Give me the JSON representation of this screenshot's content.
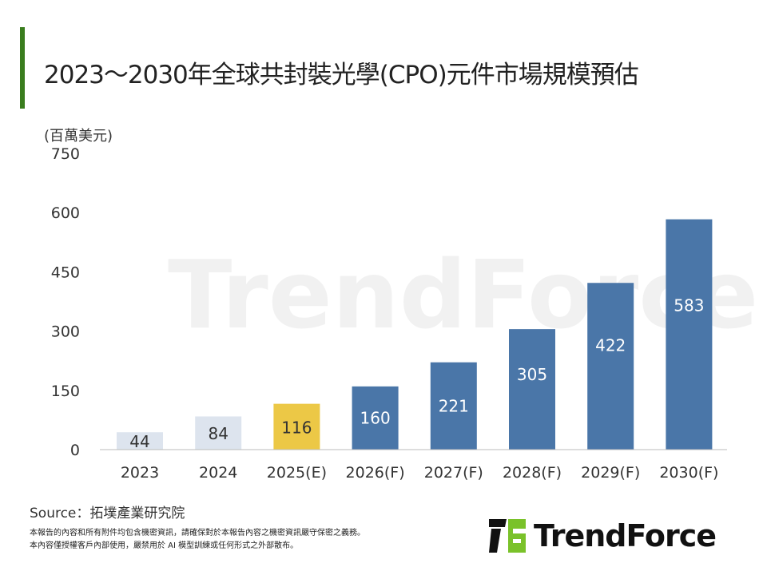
{
  "title": "2023～2030年全球共封裝光學(CPO)元件市場規模預估",
  "unit": "(百萬美元)",
  "colors": {
    "accent": "#3a7d1e",
    "actual": "#dde4ee",
    "estimate": "#ecc846",
    "forecast": "#4a76a8"
  },
  "chart_data": {
    "type": "bar",
    "title": "2023～2030年全球共封裝光學(CPO)元件市場規模預估",
    "ylabel": "(百萬美元)",
    "ylim": [
      0,
      750
    ],
    "yticks": [
      0,
      150,
      300,
      450,
      600,
      750
    ],
    "categories": [
      "2023",
      "2024",
      "2025(E)",
      "2026(F)",
      "2027(F)",
      "2028(F)",
      "2029(F)",
      "2030(F)"
    ],
    "values": [
      44,
      84,
      116,
      160,
      221,
      305,
      422,
      583
    ],
    "bar_types": [
      "actual",
      "actual",
      "estimate",
      "forecast",
      "forecast",
      "forecast",
      "forecast",
      "forecast"
    ],
    "grid": false
  },
  "source": "Source：拓墣產業研究院",
  "notes": [
    "本報告的內容和所有附件均包含機密資訊，請確保對於本報告內容之機密資訊嚴守保密之義務。",
    "本內容僅授權客戶內部使用，嚴禁用於 AI 模型訓練或任何形式之外部散布。"
  ],
  "logo": "TrendForce",
  "watermark": "TrendForce"
}
